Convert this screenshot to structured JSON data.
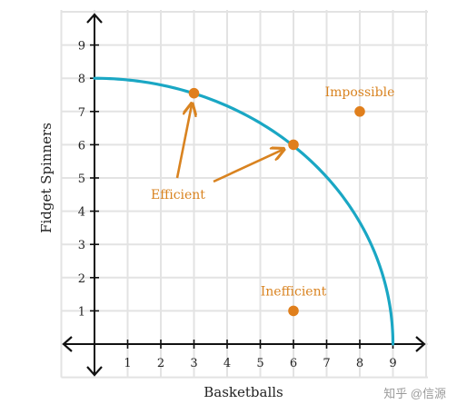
{
  "chart_data": {
    "type": "line",
    "title": "",
    "xlabel": "Basketballs",
    "ylabel": "Fidget Spinners",
    "xlim": [
      -1,
      10
    ],
    "ylim": [
      -1,
      10
    ],
    "x_ticks": [
      "1",
      "2",
      "3",
      "4",
      "5",
      "6",
      "7",
      "8",
      "9"
    ],
    "y_ticks": [
      "1",
      "2",
      "3",
      "4",
      "5",
      "6",
      "7",
      "8",
      "9"
    ],
    "grid": true,
    "series": [
      {
        "curve": "production-possibilities-frontier",
        "x_intercept": 9,
        "y_intercept": 8,
        "color": "#1aa7c4"
      }
    ],
    "points": [
      {
        "x": 3,
        "y": 7.55,
        "label": ""
      },
      {
        "x": 6,
        "y": 6,
        "label": ""
      },
      {
        "x": 8,
        "y": 7,
        "label": "Impossible"
      },
      {
        "x": 6,
        "y": 1,
        "label": "Inefficient"
      }
    ],
    "annotations": [
      {
        "text": "Efficient",
        "points_to": [
          [
            3,
            7.55
          ],
          [
            6,
            6
          ]
        ]
      }
    ],
    "point_color": "#e07f1c",
    "label_color": "#d98320",
    "axis_color": "#111111",
    "grid_color": "#e3e3e3"
  },
  "watermark": "知乎 @信源"
}
